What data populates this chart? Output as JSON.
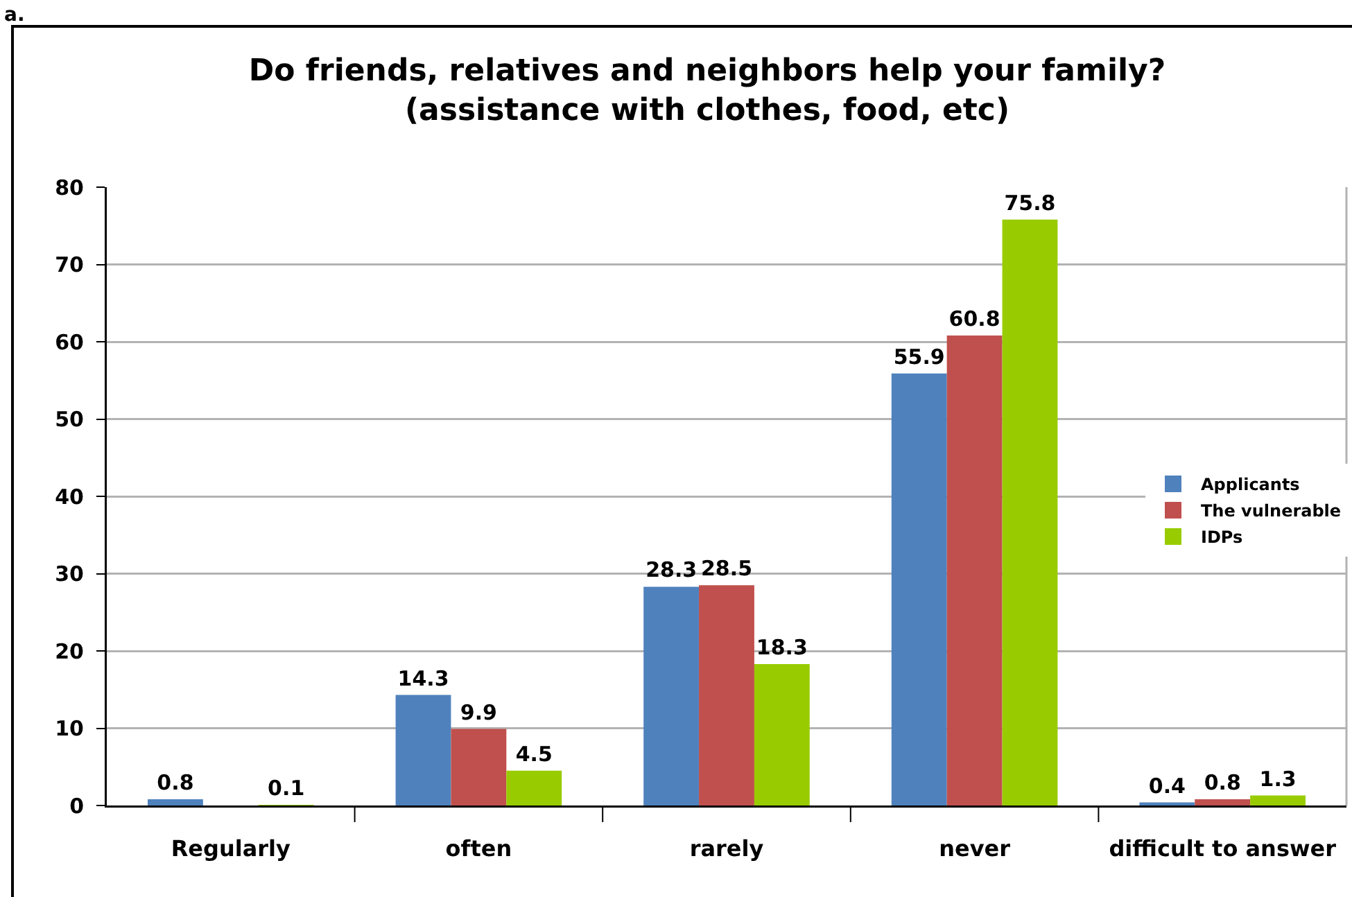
{
  "chart_data": {
    "type": "bar",
    "title": "Do friends, relatives and neighbors help your family?\n(assistance with clothes, food, etc)",
    "categories": [
      "Regularly",
      "often",
      "rarely",
      "never",
      "difficult to answer"
    ],
    "series": [
      {
        "name": "Applicants",
        "color": "#4f81bd",
        "values": [
          0.8,
          14.3,
          28.3,
          55.9,
          0.4
        ]
      },
      {
        "name": "The vulnerable",
        "color": "#c0504d",
        "values": [
          null,
          9.9,
          28.5,
          60.8,
          0.8
        ]
      },
      {
        "name": "IDPs",
        "color": "#99cc00",
        "values": [
          0.1,
          4.5,
          18.3,
          75.8,
          1.3
        ]
      }
    ],
    "ylim": [
      0,
      80
    ],
    "yticks": [
      0,
      10,
      20,
      30,
      40,
      50,
      60,
      70,
      80
    ],
    "grid": "y",
    "legend": "right",
    "data_labels": true,
    "annotations": [
      "a."
    ]
  }
}
